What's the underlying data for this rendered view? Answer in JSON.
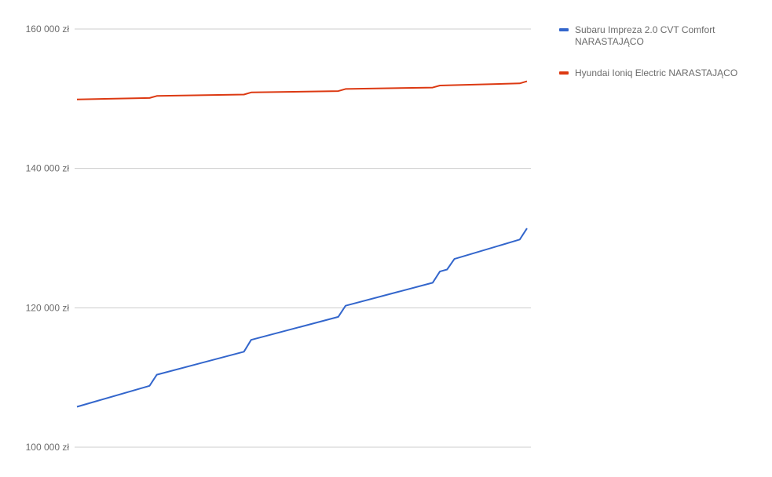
{
  "chart_data": {
    "type": "line",
    "title": "",
    "xlabel": "",
    "ylabel": "",
    "ylim": [
      100000,
      160000
    ],
    "yticks": [
      {
        "value": 100000,
        "label": "100 000 zł"
      },
      {
        "value": 120000,
        "label": "120 000 zł"
      },
      {
        "value": 140000,
        "label": "140 000 zł"
      },
      {
        "value": 160000,
        "label": "160 000 zł"
      }
    ],
    "grid": true,
    "legend": "right",
    "x": [
      0,
      10,
      11,
      23,
      24,
      36,
      37,
      49,
      50,
      51,
      52,
      61,
      62
    ],
    "series": [
      {
        "name": "Subaru Impreza 2.0 CVT Comfort NARASTAJĄCO",
        "legend_lines": [
          "Subaru Impreza 2.0 CVT Comfort",
          "NARASTAJĄCO"
        ],
        "color": "#3366cc",
        "values": [
          105800,
          108800,
          110400,
          113700,
          115400,
          118700,
          120300,
          123600,
          125200,
          125500,
          127000,
          129800,
          131400
        ]
      },
      {
        "name": "Hyundai Ioniq Electric NARASTAJĄCO",
        "legend_lines": [
          "Hyundai Ioniq Electric NARASTAJĄCO"
        ],
        "color": "#dc3912",
        "values": [
          149900,
          150100,
          150400,
          150600,
          150900,
          151100,
          151400,
          151600,
          151900,
          151920,
          151950,
          152200,
          152500
        ]
      }
    ]
  }
}
